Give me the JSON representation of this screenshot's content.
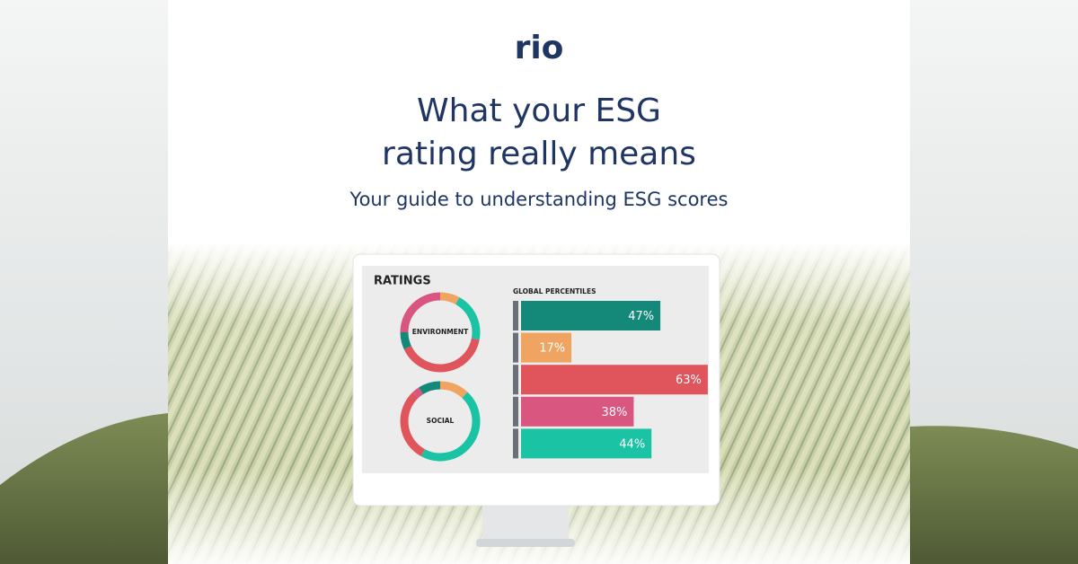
{
  "logo": "rio",
  "title": [
    "What your ESG",
    "rating really means"
  ],
  "subtitle": "Your guide to understanding ESG scores",
  "dashboard": {
    "heading": "RATINGS"
  },
  "chart_data": [
    {
      "type": "bar",
      "title": "GLOBAL PERCENTILES",
      "orientation": "horizontal",
      "categories": [
        null,
        null,
        null,
        null,
        null
      ],
      "values": [
        47,
        17,
        63,
        38,
        44
      ],
      "value_labels": [
        "47%",
        "17%",
        "63%",
        "38%",
        "44%"
      ],
      "colors": [
        "#14897a",
        "#f0a462",
        "#e0555c",
        "#d8567f",
        "#1bc3a5"
      ]
    },
    {
      "type": "donut",
      "title": "ENVIRONMENT",
      "values": [
        8,
        20,
        40,
        7,
        25
      ],
      "colors": [
        "#f0a462",
        "#1bc3a5",
        "#e0555c",
        "#14897a",
        "#d8567f"
      ]
    },
    {
      "type": "donut",
      "title": "SOCIAL",
      "values": [
        12,
        46,
        30,
        3,
        9
      ],
      "colors": [
        "#f0a462",
        "#1bc3a5",
        "#e0555c",
        "#d8567f",
        "#14897a"
      ]
    }
  ]
}
